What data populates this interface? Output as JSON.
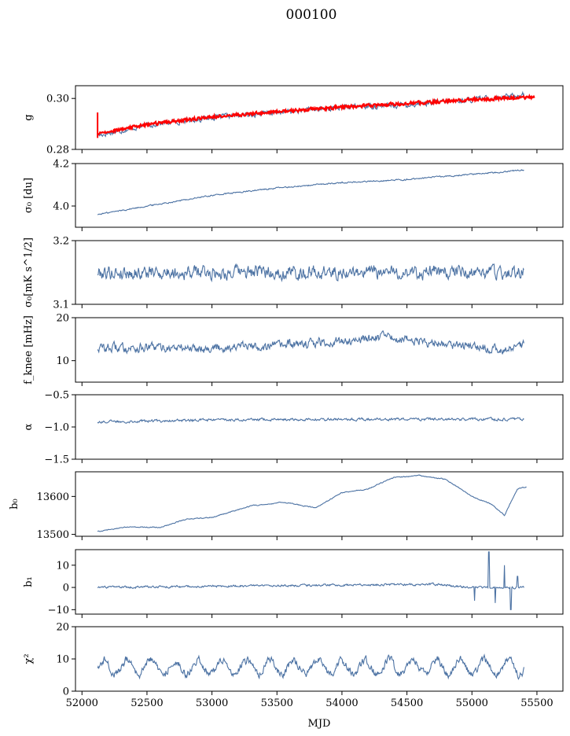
{
  "figure": {
    "title": "000100",
    "xlabel": "MJD"
  },
  "colors": {
    "series": "#4c72a3",
    "fit": "#ff0000",
    "axes": "#000000"
  },
  "chart_data": [
    {
      "type": "line",
      "id": "g",
      "ylabel": "g",
      "ylim": [
        0.28,
        0.305
      ],
      "yticks": [
        0.28,
        0.3
      ],
      "ytick_labels": [
        "0.28",
        "0.30"
      ],
      "xlim": [
        51950,
        55700
      ],
      "trend": [
        [
          52120,
          0.2855
        ],
        [
          52500,
          0.2895
        ],
        [
          53000,
          0.2925
        ],
        [
          53500,
          0.2945
        ],
        [
          54000,
          0.2965
        ],
        [
          54500,
          0.2975
        ],
        [
          55000,
          0.2995
        ],
        [
          55400,
          0.3015
        ]
      ],
      "noise": 0.0012,
      "series_name": "",
      "fit": [
        [
          52120,
          0.2862
        ],
        [
          52500,
          0.2898
        ],
        [
          53000,
          0.2928
        ],
        [
          53500,
          0.2948
        ],
        [
          54000,
          0.2966
        ],
        [
          54500,
          0.298
        ],
        [
          55000,
          0.2996
        ],
        [
          55480,
          0.3005
        ]
      ],
      "fit_noise": 0.0007
    },
    {
      "type": "line",
      "id": "sigma0_du",
      "ylabel": "σ₀ [du]",
      "ylim": [
        3.9,
        4.2
      ],
      "yticks": [
        4.0,
        4.2
      ],
      "ytick_labels": [
        "4.0",
        "4.2"
      ],
      "xlim": [
        51950,
        55700
      ],
      "trend": [
        [
          52120,
          3.96
        ],
        [
          52500,
          4.0
        ],
        [
          53000,
          4.05
        ],
        [
          53500,
          4.085
        ],
        [
          54000,
          4.11
        ],
        [
          54500,
          4.125
        ],
        [
          55000,
          4.15
        ],
        [
          55400,
          4.17
        ]
      ],
      "noise": 0.004
    },
    {
      "type": "line",
      "id": "sigma0_mks",
      "ylabel": "σ₀[mK s^1/2]",
      "ylim": [
        3.1,
        3.2
      ],
      "yticks": [
        3.1,
        3.2
      ],
      "ytick_labels": [
        "3.1",
        "3.2"
      ],
      "xlim": [
        51950,
        55700
      ],
      "trend": [
        [
          52120,
          3.15
        ],
        [
          53000,
          3.15
        ],
        [
          54000,
          3.15
        ],
        [
          55000,
          3.15
        ],
        [
          55400,
          3.15
        ]
      ],
      "noise": 0.013
    },
    {
      "type": "line",
      "id": "fknee",
      "ylabel": "f_knee [mHz]",
      "ylim": [
        5,
        20
      ],
      "yticks": [
        10,
        20
      ],
      "ytick_labels": [
        "10",
        "20"
      ],
      "xlim": [
        51950,
        55700
      ],
      "trend": [
        [
          52120,
          13
        ],
        [
          53000,
          13
        ],
        [
          53500,
          13.5
        ],
        [
          54000,
          14.5
        ],
        [
          54300,
          15.5
        ],
        [
          54800,
          14
        ],
        [
          55200,
          12.5
        ],
        [
          55400,
          13.5
        ]
      ],
      "noise": 1.3
    },
    {
      "type": "line",
      "id": "alpha",
      "ylabel": "α",
      "ylim": [
        -1.5,
        -0.5
      ],
      "yticks": [
        -1.5,
        -1.0,
        -0.5
      ],
      "ytick_labels": [
        "−1.5",
        "−1.0",
        "−0.5"
      ],
      "xlim": [
        51950,
        55700
      ],
      "trend": [
        [
          52120,
          -0.92
        ],
        [
          53000,
          -0.89
        ],
        [
          54000,
          -0.88
        ],
        [
          55400,
          -0.88
        ]
      ],
      "noise": 0.025
    },
    {
      "type": "line",
      "id": "b0",
      "ylabel": "b₀",
      "ylim": [
        13495,
        13665
      ],
      "yticks": [
        13500,
        13600
      ],
      "ytick_labels": [
        "13500",
        "13600"
      ],
      "xlim": [
        51950,
        55700
      ],
      "trend": [
        [
          52120,
          13508
        ],
        [
          52350,
          13520
        ],
        [
          52600,
          13518
        ],
        [
          52800,
          13540
        ],
        [
          53000,
          13545
        ],
        [
          53300,
          13575
        ],
        [
          53550,
          13585
        ],
        [
          53800,
          13570
        ],
        [
          54000,
          13610
        ],
        [
          54200,
          13620
        ],
        [
          54400,
          13650
        ],
        [
          54600,
          13655
        ],
        [
          54800,
          13645
        ],
        [
          55000,
          13600
        ],
        [
          55150,
          13580
        ],
        [
          55250,
          13550
        ],
        [
          55350,
          13620
        ],
        [
          55420,
          13625
        ]
      ],
      "noise": 1.5
    },
    {
      "type": "line",
      "id": "b1",
      "ylabel": "b₁",
      "ylim": [
        -12,
        17
      ],
      "yticks": [
        -10,
        0,
        10
      ],
      "ytick_labels": [
        "−10",
        "0",
        "10"
      ],
      "xlim": [
        51950,
        55700
      ],
      "trend": [
        [
          52120,
          0
        ],
        [
          54700,
          1.5
        ],
        [
          55000,
          0
        ],
        [
          55400,
          0
        ]
      ],
      "noise": 0.6,
      "spikes": [
        [
          55130,
          16
        ],
        [
          55180,
          -7
        ],
        [
          55250,
          10
        ],
        [
          55300,
          -10
        ],
        [
          55350,
          5
        ],
        [
          55020,
          -6
        ]
      ]
    },
    {
      "type": "line",
      "id": "chi2",
      "ylabel": "χ²",
      "ylim": [
        0,
        20
      ],
      "yticks": [
        0,
        10,
        20
      ],
      "ytick_labels": [
        "0",
        "10",
        "20"
      ],
      "xlim": [
        51950,
        55700
      ],
      "trend": [
        [
          52120,
          7.5
        ],
        [
          55400,
          7.5
        ]
      ],
      "noise": 1.5,
      "seasonal_amp": 2.2,
      "seasonal_period": 183
    }
  ],
  "xaxis": {
    "ticks": [
      52000,
      52500,
      53000,
      53500,
      54000,
      54500,
      55000,
      55500
    ],
    "tick_labels": [
      "52000",
      "52500",
      "53000",
      "53500",
      "54000",
      "54500",
      "55000",
      "55500"
    ]
  }
}
